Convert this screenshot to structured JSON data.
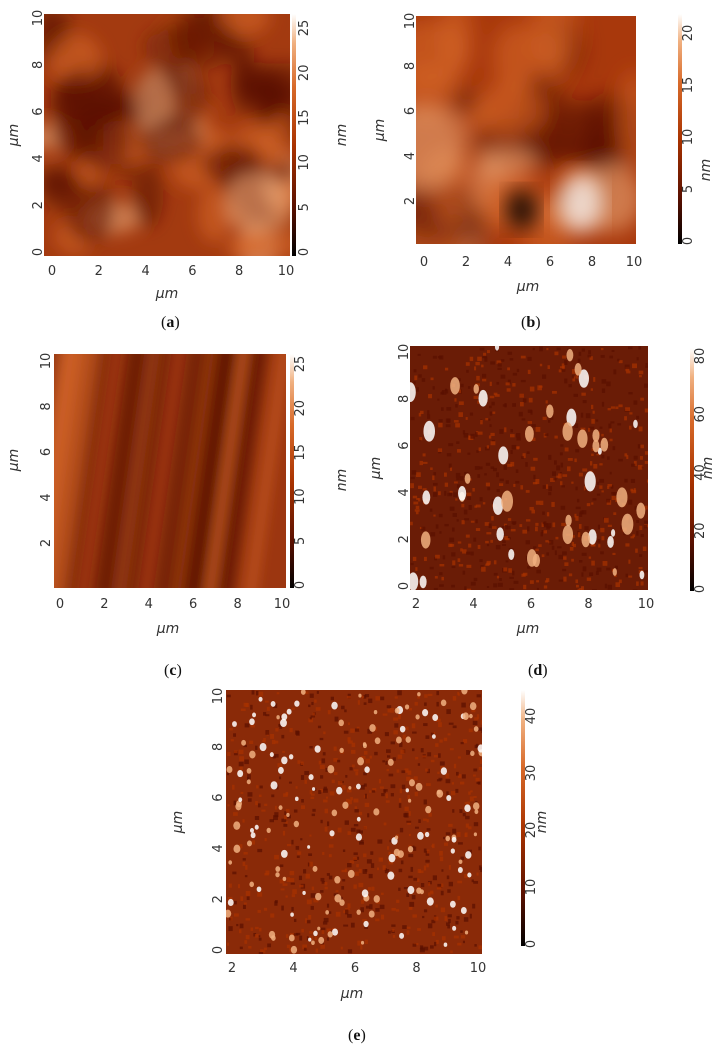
{
  "figure": {
    "panels": [
      {
        "id": "a",
        "caption_open": "(",
        "caption_letter": "a",
        "caption_close": ")",
        "x_ticks": [
          "0",
          "2",
          "4",
          "6",
          "8",
          "10"
        ],
        "y_ticks": [
          "0",
          "2",
          "4",
          "6",
          "8",
          "10"
        ],
        "xlabel": "µm",
        "ylabel": "µm",
        "scale_ticks": [
          "0",
          "5",
          "10",
          "15",
          "20",
          "25"
        ],
        "scale_label": "nm",
        "texture": "smooth"
      },
      {
        "id": "b",
        "caption_open": "(",
        "caption_letter": "b",
        "caption_close": ")",
        "x_ticks": [
          "0",
          "2",
          "4",
          "6",
          "8",
          "10"
        ],
        "y_ticks": [
          "2",
          "4",
          "6",
          "8",
          "10"
        ],
        "xlabel": "µm",
        "ylabel": "µm",
        "scale_ticks": [
          "0",
          "5",
          "10",
          "15",
          "20"
        ],
        "scale_label": "nm",
        "texture": "blobs"
      },
      {
        "id": "c",
        "caption_open": "(",
        "caption_letter": "c",
        "caption_close": ")",
        "x_ticks": [
          "0",
          "2",
          "4",
          "6",
          "8",
          "10"
        ],
        "y_ticks": [
          "2",
          "4",
          "6",
          "8",
          "10"
        ],
        "xlabel": "µm",
        "ylabel": "µm",
        "scale_ticks": [
          "0",
          "5",
          "10",
          "15",
          "20",
          "25"
        ],
        "scale_label": "nm",
        "texture": "streaks"
      },
      {
        "id": "d",
        "caption_open": "(",
        "caption_letter": "d",
        "caption_close": ")",
        "x_ticks": [
          "2",
          "4",
          "6",
          "8",
          "10"
        ],
        "y_ticks": [
          "0",
          "2",
          "4",
          "6",
          "8",
          "10"
        ],
        "xlabel": "µm",
        "ylabel": "µm",
        "scale_ticks": [
          "0",
          "20",
          "40",
          "60",
          "80"
        ],
        "scale_label": "nm",
        "texture": "grains"
      },
      {
        "id": "e",
        "caption_open": "(",
        "caption_letter": "e",
        "caption_close": ")",
        "x_ticks": [
          "2",
          "4",
          "6",
          "8",
          "10"
        ],
        "y_ticks": [
          "0",
          "2",
          "4",
          "6",
          "8",
          "10"
        ],
        "xlabel": "µm",
        "ylabel": "µm",
        "scale_ticks": [
          "0",
          "10",
          "20",
          "30",
          "40"
        ],
        "scale_label": "nm",
        "texture": "dots"
      }
    ],
    "colormap": [
      "#000000",
      "#5a1000",
      "#a83200",
      "#d86a2a",
      "#f0b080",
      "#ffffff"
    ]
  }
}
